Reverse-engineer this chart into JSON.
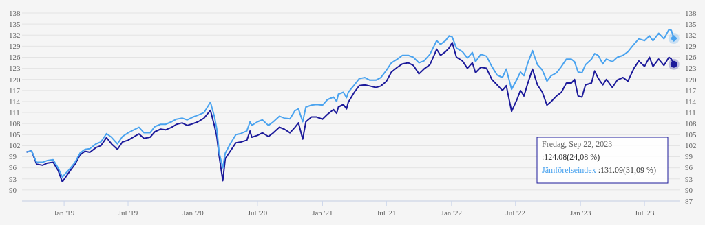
{
  "chart_data": {
    "type": "line",
    "x": [
      "2018-09-18",
      "2018-10-01",
      "2018-10-15",
      "2018-11-01",
      "2018-11-15",
      "2018-12-01",
      "2018-12-15",
      "2018-12-27",
      "2019-01-15",
      "2019-02-01",
      "2019-02-15",
      "2019-03-01",
      "2019-03-15",
      "2019-04-01",
      "2019-04-15",
      "2019-05-01",
      "2019-05-15",
      "2019-06-01",
      "2019-06-15",
      "2019-07-01",
      "2019-07-15",
      "2019-08-01",
      "2019-08-15",
      "2019-09-01",
      "2019-09-15",
      "2019-10-01",
      "2019-10-15",
      "2019-11-01",
      "2019-11-15",
      "2019-12-01",
      "2019-12-15",
      "2020-01-01",
      "2020-01-15",
      "2020-02-01",
      "2020-02-19",
      "2020-03-01",
      "2020-03-08",
      "2020-03-15",
      "2020-03-25",
      "2020-04-01",
      "2020-04-15",
      "2020-05-01",
      "2020-05-15",
      "2020-06-01",
      "2020-06-10",
      "2020-06-15",
      "2020-07-01",
      "2020-07-15",
      "2020-08-01",
      "2020-08-15",
      "2020-09-01",
      "2020-09-15",
      "2020-10-01",
      "2020-10-15",
      "2020-10-25",
      "2020-11-06",
      "2020-11-15",
      "2020-12-01",
      "2020-12-15",
      "2021-01-01",
      "2021-01-15",
      "2021-02-01",
      "2021-02-10",
      "2021-02-15",
      "2021-03-01",
      "2021-03-10",
      "2021-03-15",
      "2021-04-01",
      "2021-04-15",
      "2021-05-01",
      "2021-05-15",
      "2021-06-01",
      "2021-06-15",
      "2021-07-01",
      "2021-07-15",
      "2021-08-01",
      "2021-08-15",
      "2021-09-01",
      "2021-09-15",
      "2021-10-01",
      "2021-10-15",
      "2021-11-01",
      "2021-11-15",
      "2021-11-20",
      "2021-12-01",
      "2021-12-15",
      "2021-12-25",
      "2022-01-03",
      "2022-01-15",
      "2022-02-01",
      "2022-02-15",
      "2022-03-01",
      "2022-03-10",
      "2022-03-25",
      "2022-04-10",
      "2022-04-25",
      "2022-05-10",
      "2022-05-25",
      "2022-06-05",
      "2022-06-20",
      "2022-07-05",
      "2022-07-15",
      "2022-07-25",
      "2022-08-05",
      "2022-08-18",
      "2022-09-01",
      "2022-09-15",
      "2022-09-28",
      "2022-10-10",
      "2022-10-25",
      "2022-11-08",
      "2022-11-22",
      "2022-12-06",
      "2022-12-15",
      "2022-12-25",
      "2023-01-05",
      "2023-01-15",
      "2023-02-01",
      "2023-02-10",
      "2023-02-20",
      "2023-03-05",
      "2023-03-15",
      "2023-04-01",
      "2023-04-15",
      "2023-05-01",
      "2023-05-15",
      "2023-06-01",
      "2023-06-15",
      "2023-07-01",
      "2023-07-15",
      "2023-07-25",
      "2023-08-10",
      "2023-08-25",
      "2023-09-08",
      "2023-09-15",
      "2023-09-22"
    ],
    "series": [
      {
        "color": "#1c1a9a",
        "values": [
          100.3,
          100.6,
          97.0,
          96.7,
          97.3,
          97.5,
          95.3,
          92.2,
          94.8,
          97.0,
          99.5,
          100.5,
          100.2,
          101.5,
          102.0,
          104.2,
          102.5,
          101.0,
          103.0,
          103.5,
          104.3,
          105.2,
          104.0,
          104.3,
          105.8,
          106.5,
          106.3,
          107.0,
          107.8,
          108.2,
          107.5,
          108.0,
          108.5,
          109.5,
          111.6,
          107.5,
          104.5,
          99.0,
          92.5,
          98.5,
          100.5,
          102.8,
          103.0,
          103.5,
          106.0,
          104.3,
          104.8,
          105.5,
          104.5,
          105.5,
          107.0,
          106.5,
          105.5,
          107.0,
          108.2,
          103.8,
          108.5,
          109.8,
          109.8,
          109.2,
          110.5,
          111.8,
          110.8,
          112.5,
          113.2,
          112.0,
          113.8,
          116.5,
          118.3,
          118.5,
          118.2,
          117.8,
          118.2,
          119.5,
          122.0,
          123.3,
          124.2,
          124.5,
          123.8,
          121.5,
          122.8,
          124.0,
          127.0,
          128.2,
          126.5,
          127.5,
          128.5,
          130.0,
          126.0,
          125.0,
          123.0,
          124.5,
          121.8,
          123.3,
          123.0,
          120.0,
          118.5,
          117.0,
          118.3,
          111.3,
          114.5,
          117.0,
          115.5,
          119.0,
          122.8,
          118.5,
          116.5,
          113.0,
          114.0,
          115.5,
          116.5,
          119.0,
          119.0,
          120.0,
          115.5,
          115.2,
          118.5,
          119.0,
          122.3,
          120.3,
          118.5,
          120.0,
          117.8,
          119.8,
          120.5,
          119.5,
          123.0,
          125.0,
          123.5,
          126.0,
          123.5,
          125.5,
          123.8,
          126.0,
          125.5,
          124.08
        ]
      },
      {
        "name": "Jämförelseindex",
        "color": "#4aa3ef",
        "values": [
          100.3,
          100.6,
          97.5,
          97.5,
          98.0,
          98.2,
          96.0,
          93.5,
          95.5,
          97.5,
          100.0,
          101.0,
          101.2,
          102.5,
          103.0,
          105.3,
          104.3,
          102.5,
          104.5,
          105.5,
          106.2,
          107.0,
          105.5,
          105.5,
          107.2,
          107.8,
          107.8,
          108.5,
          109.2,
          109.5,
          109.0,
          109.8,
          110.3,
          111.0,
          113.8,
          110.0,
          106.5,
          100.0,
          96.0,
          100.0,
          102.5,
          105.0,
          105.3,
          106.0,
          108.5,
          107.5,
          108.5,
          109.0,
          107.5,
          108.5,
          110.0,
          109.5,
          109.3,
          111.5,
          112.0,
          108.5,
          112.5,
          113.0,
          113.2,
          113.0,
          114.5,
          115.2,
          114.0,
          116.0,
          116.5,
          115.0,
          116.5,
          118.5,
          120.2,
          120.5,
          119.8,
          119.8,
          120.5,
          122.5,
          124.5,
          125.5,
          126.5,
          126.5,
          126.0,
          124.5,
          125.0,
          126.8,
          129.5,
          130.5,
          129.5,
          130.5,
          131.8,
          131.5,
          128.5,
          127.5,
          125.8,
          127.3,
          124.8,
          126.8,
          126.3,
          123.5,
          121.2,
          120.5,
          122.8,
          117.3,
          120.0,
          122.0,
          121.0,
          124.5,
          127.8,
          124.0,
          122.5,
          119.5,
          121.0,
          121.8,
          123.5,
          125.5,
          125.5,
          124.8,
          122.0,
          121.8,
          124.0,
          125.5,
          127.0,
          126.5,
          124.2,
          125.5,
          124.8,
          126.0,
          126.5,
          127.5,
          129.5,
          131.0,
          130.5,
          131.8,
          130.5,
          132.5,
          131.0,
          133.5,
          133.3,
          131.09
        ]
      }
    ],
    "xlim": [
      "2018-09-04",
      "2023-10-10"
    ],
    "xticks": [
      {
        "value": "2019-01-01",
        "label": "Jan '19"
      },
      {
        "value": "2019-07-01",
        "label": "Jul '19"
      },
      {
        "value": "2020-01-01",
        "label": "Jan '20"
      },
      {
        "value": "2020-07-01",
        "label": "Jul '20"
      },
      {
        "value": "2021-01-01",
        "label": "Jan '21"
      },
      {
        "value": "2021-07-01",
        "label": "Jul '21"
      },
      {
        "value": "2022-01-01",
        "label": "Jan '22"
      },
      {
        "value": "2022-07-01",
        "label": "Jul '22"
      },
      {
        "value": "2023-01-01",
        "label": "Jan '23"
      },
      {
        "value": "2023-07-01",
        "label": "Jul '23"
      }
    ],
    "ylim": [
      87,
      138
    ],
    "yticks": [
      {
        "value": 87,
        "label": null
      },
      90,
      93,
      96,
      99,
      102,
      105,
      108,
      111,
      114,
      117,
      120,
      123,
      126,
      129,
      132,
      135,
      138
    ],
    "y2lim": [
      87,
      138
    ],
    "y2ticks": [
      87,
      90,
      93,
      96,
      99,
      102,
      105,
      108,
      111,
      114,
      117,
      120,
      123,
      126,
      129,
      132,
      135,
      138
    ],
    "grid": "y",
    "annotations": [
      "Fredag, Sep 22, 2023",
      ":124.08(24,08 %)",
      ":131.09(31,09 %)"
    ]
  }
}
